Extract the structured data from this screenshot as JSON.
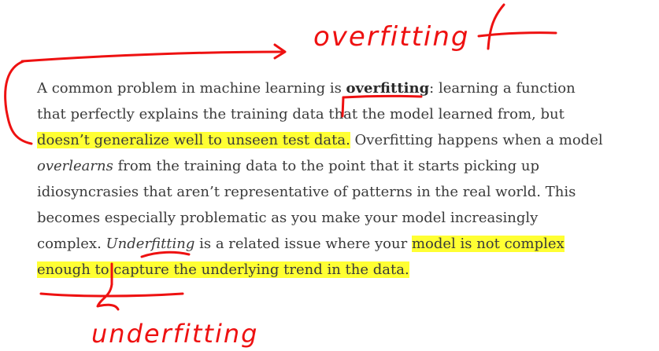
{
  "article": {
    "s1_pre": "A common problem in machine learning is ",
    "s1_term": "overfitting",
    "s1_post": ": learning a function that perfectly explains the training data that the model learned from, but ",
    "s1_highlight": "doesn’t generalize well to unseen test data.",
    "s2": " Overfitting happens when a model ",
    "s2_em": "overlearns",
    "s2_post": " from the training data to the point that it starts picking up idiosyncrasies that aren’t representative of patterns in the real world. This becomes especially problematic as you make your model increasingly complex. ",
    "s3_em": "Underfitting",
    "s3_post": " is a related issue where your ",
    "s3_highlight": "model is not complex enough to capture the underlying trend in the data."
  },
  "annotations": {
    "top_label": "overfitting",
    "bottom_label": "underfitting",
    "ink_color": "#ee1111",
    "highlight_color": "#ffff33"
  }
}
